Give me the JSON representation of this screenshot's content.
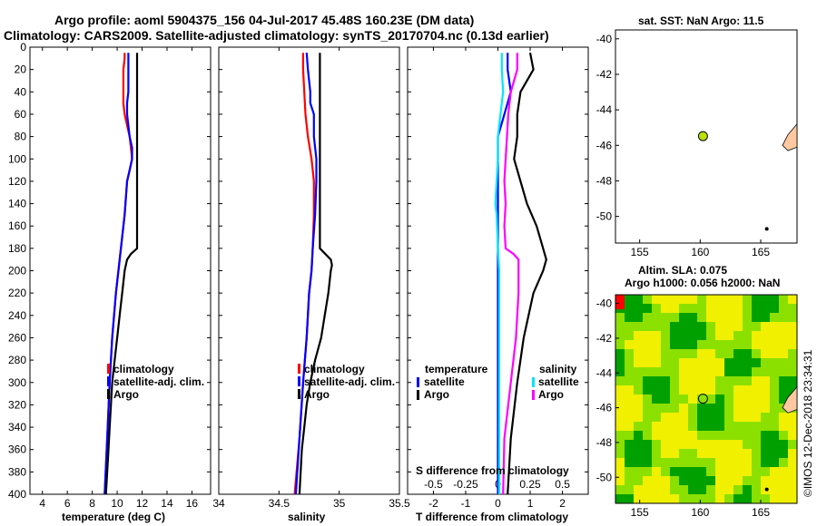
{
  "header": {
    "title_line1": "Argo profile: aoml 5904375_156 04-Jul-2017 45.48S 160.23E (DM data)",
    "title_line2": "Climatology: CARS2009. Satellite-adjusted climatology: synTS_20170704.nc (0.13d earlier)"
  },
  "footer": {
    "stamp": "©IMOS 12-Dec-2018 23:34:31"
  },
  "colors": {
    "climatology": "#ff0000",
    "satellite": "#0000ff",
    "argo": "#000000",
    "sal_satellite": "#00e5ff",
    "sal_argo": "#ff00ff",
    "land": "#ffc8a0",
    "float": "#b8e000",
    "map_dark": "#00a000",
    "map_mid": "#8ce000",
    "map_yel": "#f0f000"
  },
  "chart_data": [
    {
      "type": "line",
      "id": "temperature",
      "xlabel": "temperature (deg C)",
      "ylabel": "",
      "xlim": [
        3,
        17.5
      ],
      "ylim": [
        400,
        0
      ],
      "xticks": [
        "4",
        "6",
        "8",
        "10",
        "12",
        "14",
        "16"
      ],
      "yticks": [
        "0",
        "20",
        "40",
        "60",
        "80",
        "100",
        "120",
        "140",
        "160",
        "180",
        "200",
        "220",
        "240",
        "260",
        "280",
        "300",
        "320",
        "340",
        "360",
        "380",
        "400"
      ],
      "legend": [
        "climatology",
        "satellite-adj. clim.",
        "Argo"
      ],
      "series": [
        {
          "name": "climatology",
          "depth": [
            5,
            10,
            20,
            40,
            50,
            60,
            70,
            80,
            90,
            100,
            110,
            120,
            150,
            180,
            220,
            260,
            300,
            350,
            400
          ],
          "values": [
            10.6,
            10.6,
            10.5,
            10.5,
            10.5,
            10.6,
            10.8,
            11.0,
            11.1,
            11.2,
            11.0,
            10.8,
            10.6,
            10.3,
            9.9,
            9.6,
            9.4,
            9.2,
            9.0
          ]
        },
        {
          "name": "satellite-adj. clim.",
          "depth": [
            5,
            10,
            20,
            40,
            50,
            60,
            70,
            80,
            90,
            100,
            110,
            120,
            150,
            180,
            220,
            260,
            300,
            350,
            400
          ],
          "values": [
            10.9,
            10.9,
            10.9,
            10.9,
            10.8,
            10.8,
            10.9,
            11.0,
            11.2,
            11.2,
            11.0,
            10.8,
            10.6,
            10.3,
            9.9,
            9.6,
            9.4,
            9.2,
            9.0
          ]
        },
        {
          "name": "Argo",
          "depth": [
            5,
            20,
            40,
            60,
            80,
            100,
            120,
            140,
            160,
            180,
            185,
            190,
            200,
            220,
            240,
            260,
            280,
            300,
            320,
            340,
            360,
            380,
            400
          ],
          "values": [
            11.6,
            11.6,
            11.6,
            11.6,
            11.6,
            11.6,
            11.6,
            11.6,
            11.6,
            11.6,
            11.1,
            10.8,
            10.6,
            10.4,
            10.2,
            10.0,
            9.8,
            9.6,
            9.5,
            9.4,
            9.3,
            9.2,
            9.1
          ]
        }
      ]
    },
    {
      "type": "line",
      "id": "salinity",
      "xlabel": "salinity",
      "ylabel": "",
      "xlim": [
        34,
        35.5
      ],
      "ylim": [
        400,
        0
      ],
      "xticks": [
        "34",
        "34.5",
        "35",
        "35.5"
      ],
      "legend": [
        "climatology",
        "satellite-adj. clim.",
        "Argo"
      ],
      "series": [
        {
          "name": "climatology",
          "depth": [
            5,
            20,
            40,
            60,
            80,
            100,
            120,
            150,
            180,
            200,
            220,
            260,
            300,
            350,
            400
          ],
          "values": [
            34.7,
            34.7,
            34.71,
            34.72,
            34.74,
            34.77,
            34.79,
            34.79,
            34.78,
            34.77,
            34.75,
            34.73,
            34.7,
            34.67,
            34.63
          ]
        },
        {
          "name": "satellite-adj. clim.",
          "depth": [
            5,
            20,
            40,
            50,
            60,
            80,
            100,
            120,
            150,
            180,
            200,
            220,
            260,
            300,
            350,
            400
          ],
          "values": [
            34.73,
            34.74,
            34.76,
            34.76,
            34.79,
            34.79,
            34.81,
            34.81,
            34.8,
            34.78,
            34.77,
            34.75,
            34.73,
            34.7,
            34.67,
            34.64
          ]
        },
        {
          "name": "Argo",
          "depth": [
            5,
            20,
            40,
            60,
            80,
            100,
            120,
            140,
            160,
            180,
            190,
            195,
            200,
            220,
            240,
            260,
            280,
            300,
            320,
            340,
            360,
            380,
            400
          ],
          "values": [
            34.84,
            34.84,
            34.84,
            34.84,
            34.84,
            34.84,
            34.84,
            34.84,
            34.84,
            34.84,
            34.93,
            34.94,
            34.93,
            34.91,
            34.88,
            34.85,
            34.8,
            34.76,
            34.73,
            34.71,
            34.69,
            34.68,
            34.67
          ]
        }
      ]
    },
    {
      "type": "line",
      "id": "difference",
      "xlabel": "T difference from climatology",
      "xlabel_top": "S difference from climatology",
      "ylabel": "",
      "xlim": [
        -2.8,
        2.8
      ],
      "ylim": [
        400,
        0
      ],
      "xticks": [
        "-2",
        "-1",
        "0",
        "1",
        "2"
      ],
      "xticks_top": [
        "-0.5",
        "-0.25",
        "0",
        "0.25",
        "0.5"
      ],
      "legend_temperature": {
        "title": "temperature",
        "items": [
          "satellite",
          "Argo"
        ]
      },
      "legend_salinity": {
        "title": "salinity",
        "items": [
          "satellite",
          "Argo"
        ]
      },
      "series": [
        {
          "name": "T satellite",
          "depth": [
            5,
            20,
            40,
            60,
            80,
            100,
            120,
            150,
            200,
            260,
            300,
            350,
            400
          ],
          "values": [
            0.3,
            0.3,
            0.4,
            0.2,
            0.0,
            0.0,
            0.0,
            0.0,
            0.0,
            0.0,
            0.0,
            0.0,
            0.0
          ]
        },
        {
          "name": "T Argo",
          "depth": [
            5,
            20,
            40,
            60,
            80,
            100,
            120,
            140,
            160,
            180,
            190,
            200,
            220,
            260,
            300,
            350,
            400
          ],
          "values": [
            1.0,
            1.1,
            0.7,
            0.6,
            0.6,
            0.5,
            0.7,
            0.9,
            1.2,
            1.4,
            1.5,
            1.4,
            1.1,
            0.8,
            0.6,
            0.4,
            0.3
          ]
        },
        {
          "name": "S satellite",
          "depth": [
            5,
            20,
            40,
            60,
            80,
            100,
            120,
            140,
            150,
            180,
            200,
            260,
            300,
            350,
            400
          ],
          "values": [
            0.03,
            0.03,
            0.04,
            0.02,
            0.0,
            0.0,
            -0.01,
            -0.02,
            -0.01,
            0.0,
            0.01,
            0.01,
            0.01,
            0.01,
            0.01
          ]
        },
        {
          "name": "S Argo",
          "depth": [
            5,
            20,
            40,
            60,
            80,
            100,
            120,
            140,
            160,
            180,
            185,
            190,
            200,
            220,
            260,
            300,
            350,
            400
          ],
          "values": [
            0.15,
            0.15,
            0.1,
            0.08,
            0.07,
            0.06,
            0.05,
            0.06,
            0.05,
            0.06,
            0.12,
            0.16,
            0.16,
            0.16,
            0.14,
            0.1,
            0.05,
            0.04
          ]
        }
      ]
    },
    {
      "type": "scatter",
      "id": "map_sst",
      "title": "sat. SST: NaN Argo: 11.5",
      "xlim": [
        153,
        168
      ],
      "ylim": [
        -51.5,
        -39.5
      ],
      "xticks": [
        "155",
        "160",
        "165"
      ],
      "yticks": [
        "-40",
        "-42",
        "-44",
        "-46",
        "-48",
        "-50"
      ],
      "points": [
        {
          "label": "float",
          "x": 160.23,
          "y": -45.48
        }
      ]
    },
    {
      "type": "heatmap",
      "id": "map_sla",
      "title_line1": "Altim. SLA: 0.075",
      "title_line2": "Argo h1000: 0.056 h2000: NaN",
      "xlim": [
        153,
        168
      ],
      "ylim": [
        -51.5,
        -39.5
      ],
      "xticks": [
        "155",
        "160",
        "165"
      ],
      "yticks": [
        "-40",
        "-42",
        "-44",
        "-46",
        "-48",
        "-50"
      ],
      "points": [
        {
          "label": "float",
          "x": 160.23,
          "y": -45.48
        }
      ]
    }
  ]
}
